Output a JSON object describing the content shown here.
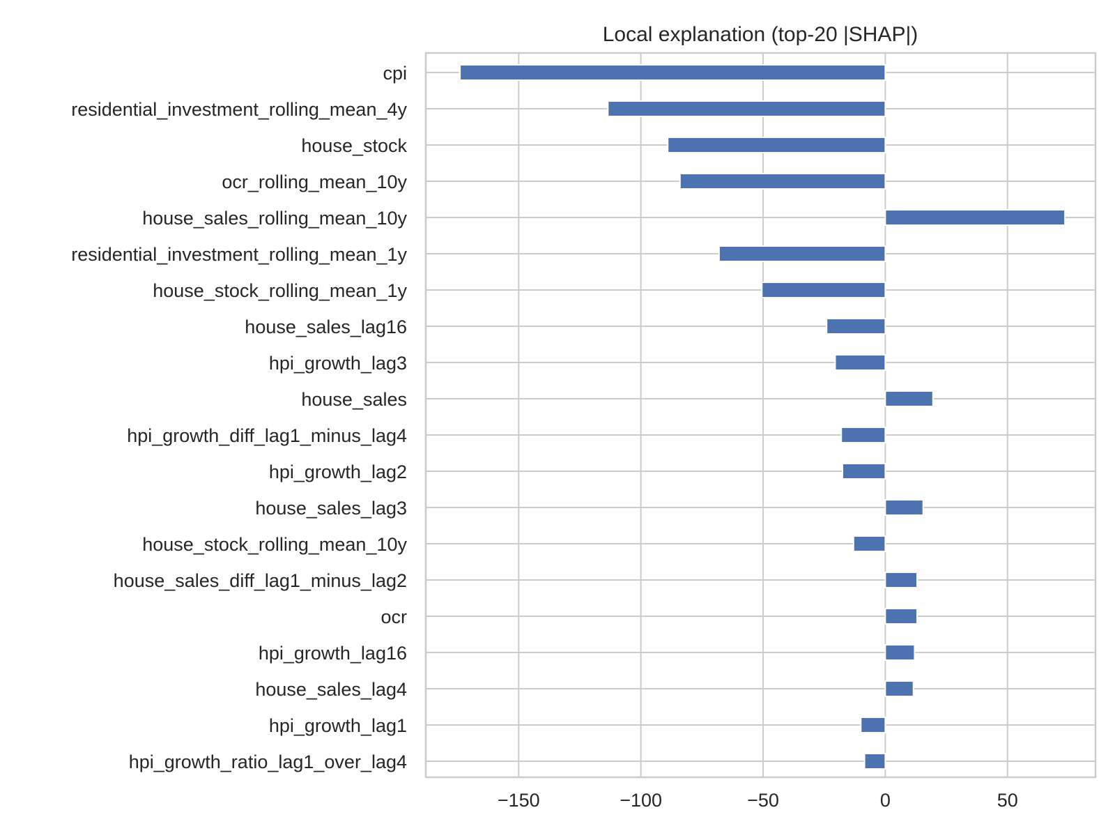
{
  "chart_data": {
    "type": "bar",
    "orientation": "horizontal",
    "title": "Local explanation (top-20 |SHAP|)",
    "xlabel": "",
    "ylabel": "",
    "xlim": [
      -188,
      86
    ],
    "xticks": [
      -150,
      -100,
      -50,
      0,
      50
    ],
    "xtick_labels": [
      "−150",
      "−100",
      "−50",
      "0",
      "50"
    ],
    "grid": true,
    "bar_color": "#4c72b0",
    "categories": [
      "cpi",
      "residential_investment_rolling_mean_4y",
      "house_stock",
      "ocr_rolling_mean_10y",
      "house_sales_rolling_mean_10y",
      "residential_investment_rolling_mean_1y",
      "house_stock_rolling_mean_1y",
      "house_sales_lag16",
      "hpi_growth_lag3",
      "house_sales",
      "hpi_growth_diff_lag1_minus_lag4",
      "hpi_growth_lag2",
      "house_sales_lag3",
      "house_stock_rolling_mean_10y",
      "house_sales_diff_lag1_minus_lag2",
      "ocr",
      "hpi_growth_lag16",
      "house_sales_lag4",
      "hpi_growth_lag1",
      "hpi_growth_ratio_lag1_over_lag4"
    ],
    "values": [
      -174,
      -113.5,
      -89,
      -84,
      73.5,
      -68,
      -50.5,
      -24,
      -20.5,
      19.5,
      -18,
      -17.5,
      15.5,
      -13,
      13,
      13,
      12,
      11.5,
      -10,
      -8.5
    ]
  }
}
